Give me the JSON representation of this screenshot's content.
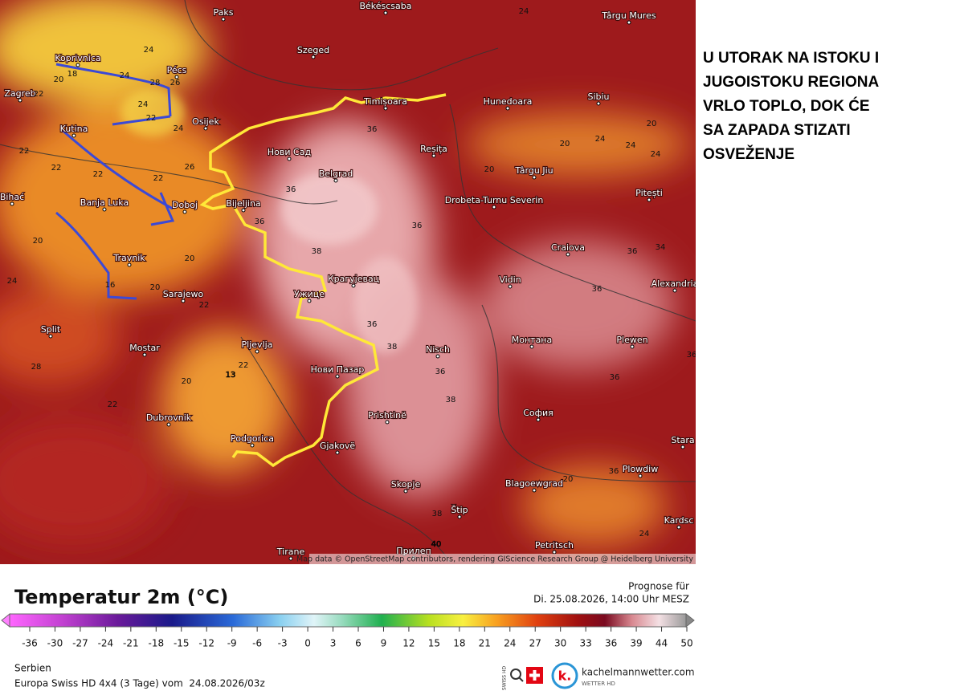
{
  "annotation": {
    "lines": [
      "U UTORAK NA ISTOKU I",
      "JUGOISTOKU REGIONA",
      "VRLO TOPLO, DOK ĆE",
      "SA ZAPADA STIZATI",
      "OSVEŽENJE"
    ]
  },
  "map": {
    "places": [
      "Paks",
      "Békéscsaba",
      "Târgu Mures",
      "Koprivnica",
      "Pécs",
      "Szeged",
      "Timișoara",
      "Hunedoara",
      "Sibiu",
      "Zagreb",
      "Osijek",
      "Kutina",
      "Нови Сад",
      "Reșița",
      "Târgu Jiu",
      "Pitești",
      "Belgrad",
      "Bihać",
      "Banja Luka",
      "Doboj",
      "Bijeljina",
      "Drobeta-Turnu Severin",
      "Craiova",
      "Travnik",
      "Sarajewo",
      "Крагујевац",
      "Ужице",
      "Vidin",
      "Alexandria",
      "Split",
      "Mostar",
      "Pljevlja",
      "Nisch",
      "Монтана",
      "Plewen",
      "Нови Пазар",
      "Dubrovnik",
      "Prishtinë",
      "София",
      "Podgorica",
      "Gjakovë",
      "Stara",
      "Plowdiw",
      "Skopje",
      "Blagoewgrad",
      "Štip",
      "Kardsc",
      "Tirane",
      "Прилеп",
      "Petritsch"
    ],
    "temperature_labels": [
      24,
      20,
      18,
      24,
      28,
      26,
      24,
      22,
      22,
      24,
      22,
      22,
      26,
      22,
      22,
      20,
      20,
      20,
      16,
      22,
      36,
      36,
      36,
      38,
      36,
      36,
      36,
      36,
      38,
      36,
      38,
      36,
      36,
      38,
      40,
      13,
      22,
      20,
      22,
      28,
      24,
      24,
      20,
      24,
      24,
      20,
      24,
      20,
      34,
      36,
      20,
      24
    ],
    "attribution": "Map data © OpenStreetMap contributors, rendering GIScience Research Group @ Heidelberg University"
  },
  "legend": {
    "title": "Temperatur 2m (°C)",
    "ticks": [
      -36,
      -30,
      -27,
      -24,
      -21,
      -18,
      -15,
      -12,
      -9,
      -6,
      -3,
      0,
      3,
      6,
      9,
      12,
      15,
      18,
      21,
      24,
      27,
      30,
      33,
      36,
      39,
      44,
      50
    ]
  },
  "forecast": {
    "label": "Prognose für",
    "time": "Di. 25.08.2026, 14:00 Uhr MESZ"
  },
  "footer": {
    "region": "Serbien",
    "model": "Europa Swiss HD 4x4 (3 Tage) vom  24.08.2026/03z",
    "swiss": "SWISS HD",
    "site": "kachelmannwetter.com",
    "site_sub": "WETTER HD"
  }
}
